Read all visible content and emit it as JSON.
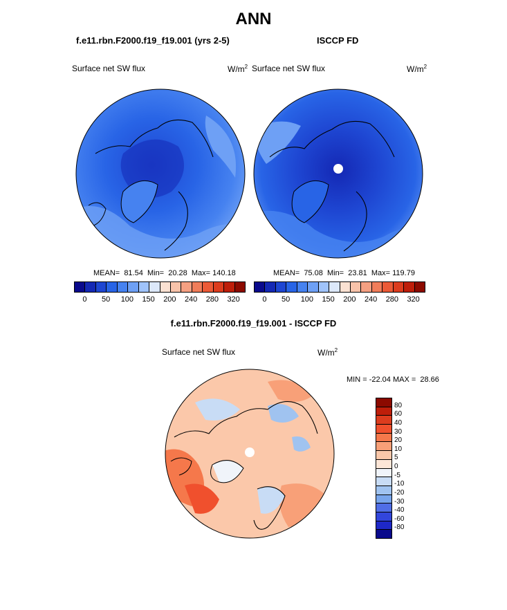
{
  "title": "ANN",
  "panel1": {
    "case": "f.e11.rbn.F2000.f19_f19.001 (yrs 2-5)",
    "varname": "Surface net SW flux",
    "units": "W/m",
    "units_sup": "2",
    "stats": "MEAN=  81.54  Min=  20.28  Max= 140.18"
  },
  "panel2": {
    "case": "ISCCP FD",
    "varname": "Surface net SW flux",
    "units": "W/m",
    "units_sup": "2",
    "stats": "MEAN=  75.08  Min=  23.81  Max= 119.79"
  },
  "diff": {
    "case": "f.e11.rbn.F2000.f19_f19.001 - ISCCP FD",
    "varname": "Surface net SW flux",
    "units": "W/m",
    "units_sup": "2",
    "stats": "MIN = -22.04 MAX =  28.66"
  },
  "abs_colorbar": {
    "colors": [
      "#0a0a8c",
      "#1428b4",
      "#1e46d2",
      "#2864e6",
      "#4682f0",
      "#6ea0f5",
      "#a0c3fa",
      "#dce8fa",
      "#fbe1d2",
      "#f8c3aa",
      "#f5a082",
      "#f07d5a",
      "#eb5a37",
      "#dc3c1e",
      "#be1e0a",
      "#8c0a00"
    ],
    "ticks": [
      "0",
      "50",
      "100",
      "150",
      "200",
      "240",
      "280",
      "320"
    ]
  },
  "diff_colorbar": {
    "colors": [
      "#8c0a00",
      "#be1e0a",
      "#dc3c1e",
      "#f0502d",
      "#f5784b",
      "#f8a078",
      "#fbc8aa",
      "#fde6d7",
      "#f0f4fa",
      "#c8dcf5",
      "#a0c3f0",
      "#78a5ec",
      "#506ee6",
      "#3246dc",
      "#1e28c8",
      "#0a0a8c"
    ],
    "ticks": [
      "80",
      "60",
      "40",
      "30",
      "20",
      "10",
      "5",
      "0",
      "-5",
      "-10",
      "-20",
      "-30",
      "-40",
      "-60",
      "-80"
    ]
  }
}
